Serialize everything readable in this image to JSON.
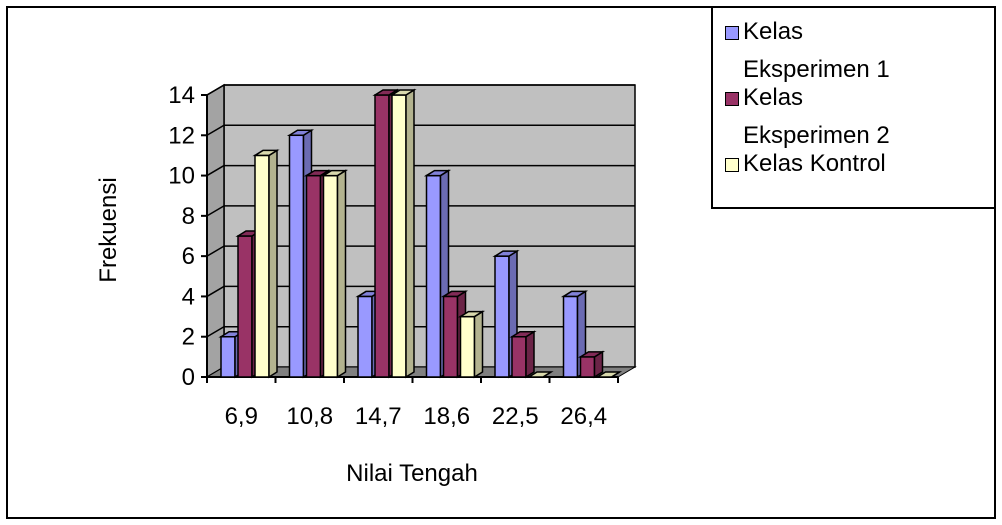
{
  "chart_data": {
    "type": "bar",
    "style": "3d-clustered-column",
    "title": "",
    "xlabel": "Nilai Tengah",
    "ylabel": "Frekuensi",
    "categories": [
      "6,9",
      "10,8",
      "14,7",
      "18,6",
      "22,5",
      "26,4"
    ],
    "ylim": [
      0,
      14
    ],
    "yticks": [
      0,
      2,
      4,
      6,
      8,
      10,
      12,
      14
    ],
    "grid": true,
    "legend_position": "top-right",
    "series": [
      {
        "name": "Kelas Eksperimen 1",
        "name_lines": [
          "Kelas",
          "Eksperimen 1"
        ],
        "color": "#9999ff",
        "values": [
          2,
          12,
          4,
          10,
          6,
          4
        ]
      },
      {
        "name": "Kelas Eksperimen 2",
        "name_lines": [
          "Kelas",
          "Eksperimen 2"
        ],
        "color": "#993366",
        "values": [
          7,
          10,
          14,
          4,
          2,
          1
        ]
      },
      {
        "name": "Kelas Kontrol",
        "name_lines": [
          "Kelas Kontrol"
        ],
        "color": "#ffffcc",
        "values": [
          11,
          10,
          14,
          3,
          0,
          0
        ]
      }
    ],
    "colors": {
      "wall": "#c0c0c0",
      "floor": "#808080",
      "gridline": "#000000"
    }
  }
}
